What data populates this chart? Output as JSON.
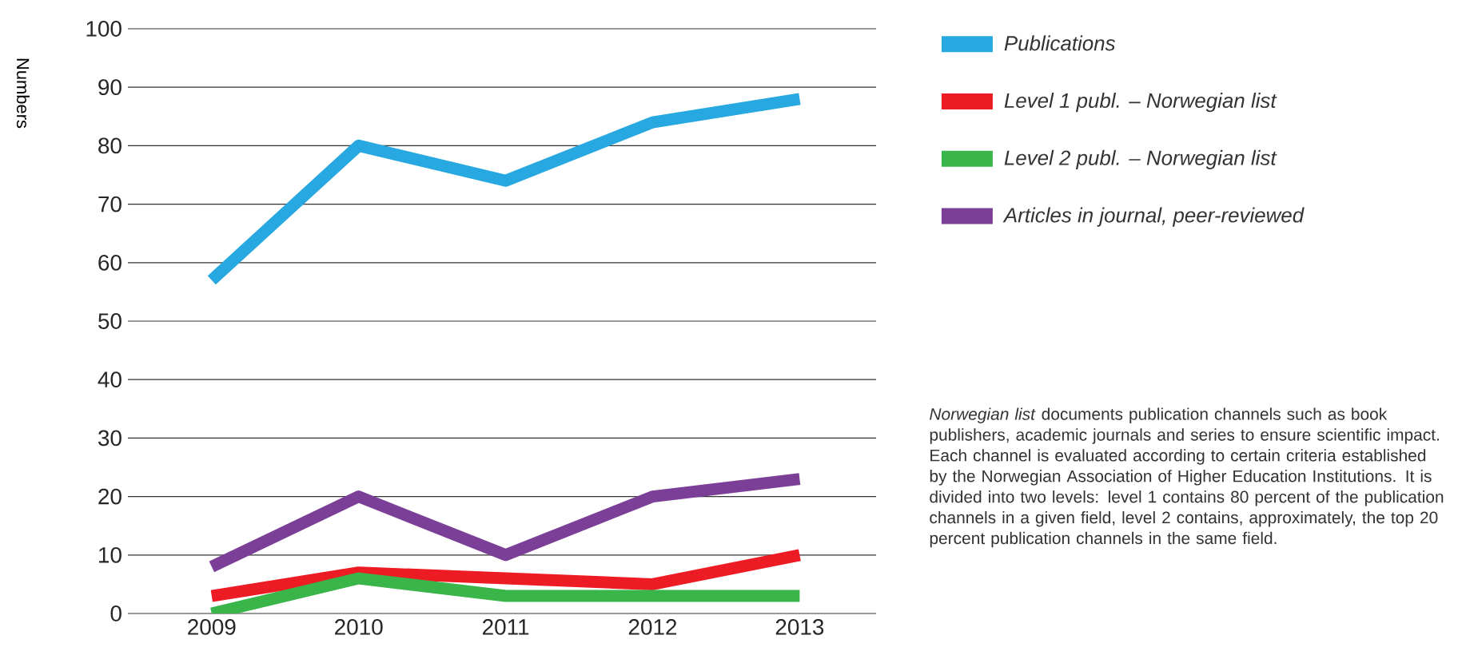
{
  "chart_data": {
    "type": "line",
    "ylabel": "Numbers",
    "categories": [
      "2009",
      "2010",
      "2011",
      "2012",
      "2013"
    ],
    "series": [
      {
        "name": "Publications",
        "color": "#27a8e0",
        "values": [
          57,
          80,
          74,
          84,
          88
        ]
      },
      {
        "name": "Level 1 publ. – Norwegian list",
        "color": "#ed1c24",
        "values": [
          3,
          7,
          6,
          5,
          10
        ]
      },
      {
        "name": "Level 2 publ. – Norwegian list",
        "color": "#39b54a",
        "values": [
          0,
          6,
          3,
          3,
          3
        ]
      },
      {
        "name": "Articles in journal, peer-reviewed",
        "color": "#7b3f98",
        "values": [
          8,
          20,
          10,
          20,
          23
        ]
      }
    ],
    "ylim": [
      0,
      100
    ],
    "yticks": [
      0,
      10,
      20,
      30,
      40,
      50,
      60,
      70,
      80,
      90,
      100
    ],
    "grid": "y",
    "legend": "right",
    "marker": "none",
    "line_style": "solid",
    "annotations": [
      "*Norwegian list* documents publication channels such as book publishers, academic journals and series to ensure scientific impact. Each channel is evaluated according to certain criteria established by the Norwegian Association of Higher Education Institutions. It is divided into two levels: level 1 contains 80 percent of the publication channels in a given field, level 2 contains, approximately, the top 20 percent publication channels in the same field."
    ]
  }
}
